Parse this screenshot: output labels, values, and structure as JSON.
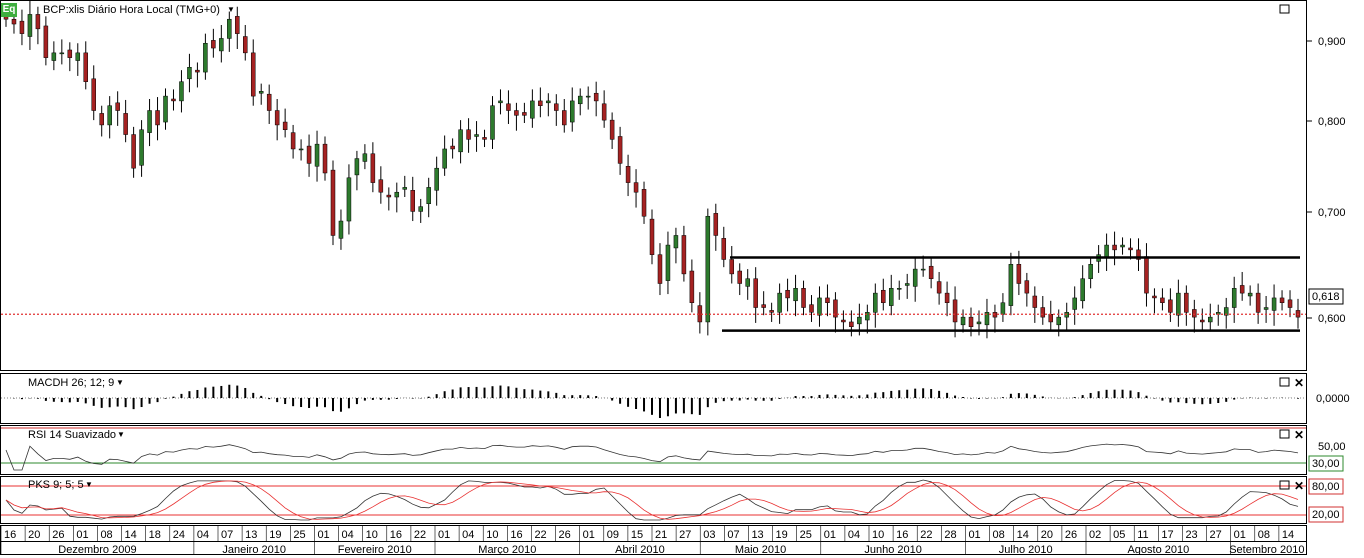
{
  "header": {
    "badge": "Eq",
    "title": "BCP:xlis Diário Hora Local (TMG+0)"
  },
  "price_axis": {
    "ticks": [
      "0,900",
      "0,800",
      "0,700",
      "0,600"
    ],
    "last_price": "0,618"
  },
  "panels": {
    "macd": {
      "title": "MACDH 26; 12; 9",
      "value_label": "0,0000"
    },
    "rsi": {
      "title": "RSI 14 Suavizado",
      "upper_label": "50,00",
      "lower_label": "30,00"
    },
    "pks": {
      "title": "PKS 9; 5; 5",
      "upper_label": "80,00",
      "lower_label": "20,00"
    }
  },
  "x_axis": {
    "day_labels": [
      "16",
      "20",
      "26",
      "01",
      "08",
      "14",
      "18",
      "24",
      "04",
      "07",
      "13",
      "19",
      "25",
      "01",
      "04",
      "10",
      "16",
      "22",
      "01",
      "04",
      "10",
      "16",
      "22",
      "26",
      "01",
      "09",
      "15",
      "21",
      "27",
      "03",
      "07",
      "13",
      "19",
      "25",
      "01",
      "04",
      "10",
      "16",
      "22",
      "28",
      "01",
      "08",
      "14",
      "20",
      "26",
      "02",
      "05",
      "11",
      "17",
      "23",
      "27",
      "01",
      "08",
      "14"
    ],
    "month_labels": [
      "Dezembro 2009",
      "Janeiro 2010",
      "Fevereiro 2010",
      "Março 2010",
      "Abril 2010",
      "Maio 2010",
      "Junho 2010",
      "Julho 2010",
      "Agosto 2010",
      "Setembro 2010"
    ]
  },
  "colors": {
    "up": "#2d7a2d",
    "down": "#a52222",
    "last_price_line": "#e03030",
    "rsi_upper": "#d23232",
    "rsi_lower": "#2d8a2d",
    "pks_k": "#333333",
    "pks_d": "#e83030",
    "support_resistance": "#000000"
  },
  "chart_data": {
    "type": "candlestick",
    "y_range": [
      0.56,
      0.945
    ],
    "support_level": 0.601,
    "resistance_level": 0.677,
    "last_price": 0.618,
    "closes": [
      0.925,
      0.92,
      0.91,
      0.93,
      0.915,
      0.885,
      0.89,
      0.89,
      0.885,
      0.89,
      0.86,
      0.83,
      0.815,
      0.835,
      0.83,
      0.805,
      0.77,
      0.81,
      0.83,
      0.815,
      0.845,
      0.84,
      0.86,
      0.875,
      0.87,
      0.9,
      0.895,
      0.905,
      0.925,
      0.91,
      0.89,
      0.845,
      0.85,
      0.83,
      0.815,
      0.81,
      0.79,
      0.79,
      0.775,
      0.795,
      0.765,
      0.7,
      0.715,
      0.76,
      0.78,
      0.785,
      0.755,
      0.745,
      0.74,
      0.745,
      0.75,
      0.725,
      0.73,
      0.75,
      0.77,
      0.79,
      0.79,
      0.81,
      0.8,
      0.805,
      0.8,
      0.835,
      0.84,
      0.83,
      0.825,
      0.825,
      0.84,
      0.835,
      0.84,
      0.83,
      0.815,
      0.84,
      0.845,
      0.845,
      0.84,
      0.82,
      0.8,
      0.775,
      0.755,
      0.745,
      0.72,
      0.68,
      0.65,
      0.69,
      0.7,
      0.66,
      0.63,
      0.61,
      0.72,
      0.7,
      0.675,
      0.66,
      0.65,
      0.655,
      0.625,
      0.625,
      0.62,
      0.64,
      0.635,
      0.645,
      0.625,
      0.62,
      0.635,
      0.63,
      0.615,
      0.61,
      0.605,
      0.615,
      0.62,
      0.64,
      0.63,
      0.645,
      0.645,
      0.65,
      0.665,
      0.665,
      0.655,
      0.64,
      0.63,
      0.61,
      0.615,
      0.605,
      0.61,
      0.62,
      0.615,
      0.63,
      0.67,
      0.65,
      0.64,
      0.625,
      0.615,
      0.61,
      0.615,
      0.62,
      0.635,
      0.655,
      0.67,
      0.68,
      0.69,
      0.685,
      0.69,
      0.685,
      0.675,
      0.64,
      0.635,
      0.63,
      0.62,
      0.64,
      0.62,
      0.615,
      0.61,
      0.615,
      0.62,
      0.625,
      0.645,
      0.64,
      0.64,
      0.62,
      0.625,
      0.635,
      0.63,
      0.625,
      0.615
    ]
  }
}
